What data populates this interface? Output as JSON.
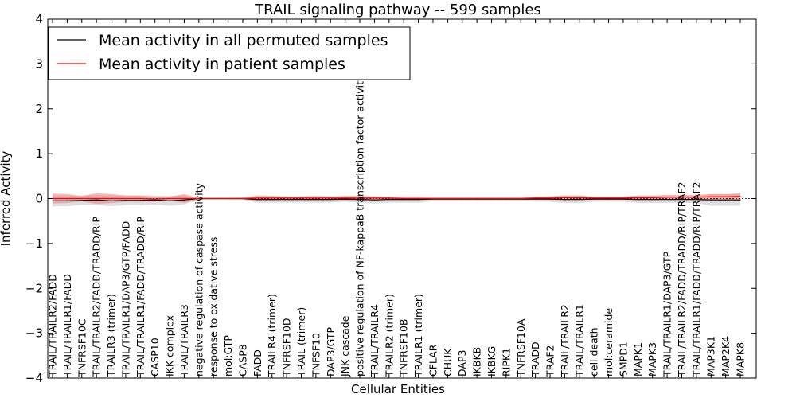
{
  "chart_data": {
    "type": "line",
    "title": "TRAIL signaling pathway -- 599 samples",
    "xlabel": "Cellular Entities",
    "ylabel": "Inferred Activity",
    "ylim": [
      -4,
      4
    ],
    "yticks": [
      -4,
      -3,
      -2,
      -1,
      0,
      1,
      2,
      3,
      4
    ],
    "ytick_labels": [
      "−4",
      "−3",
      "−2",
      "−1",
      "0",
      "1",
      "2",
      "3",
      "4"
    ],
    "legend_position": "top-left",
    "categories": [
      "TRAIL/TRAILR2/FADD",
      "TRAIL/TRAILR1/FADD",
      "TNFRSF10C",
      "TRAIL/TRAILR2/FADD/TRADD/RIP",
      "TRAILR3 (trimer)",
      "TRAIL/TRAILR1/DAP3/GTP/FADD",
      "TRAIL/TRAILR1/FADD/TRADD/RIP",
      "CASP10",
      "IKK complex",
      "TRAIL/TRAILR3",
      "negative regulation of caspase activity",
      "response to oxidative stress",
      "mol:GTP",
      "CASP8",
      "FADD",
      "TRAILR4 (trimer)",
      "TNFRSF10D",
      "TRAIL (trimer)",
      "TNFSF10",
      "DAP3/GTP",
      "JNK cascade",
      "positive regulation of NF-kappaB transcription factor activity",
      "TRAIL/TRAILR4",
      "TRAILR2 (trimer)",
      "TNFRSF10B",
      "TRAILR1 (trimer)",
      "CFLAR",
      "CHUK",
      "DAP3",
      "IKBKB",
      "IKBKG",
      "RIPK1",
      "TNFRSF10A",
      "TRADD",
      "TRAF2",
      "TRAIL/TRAILR2",
      "TRAIL/TRAILR1",
      "cell death",
      "mol:ceramide",
      "SMPD1",
      "MAPK1",
      "MAPK3",
      "TRAIL/TRAILR1/DAP3/GTP",
      "TRAIL/TRAILR2/FADD/TRADD/RIP/TRAF2",
      "TRAIL/TRAILR1/FADD/TRADD/RIP/TRAF2",
      "MAP3K1",
      "MAP2K4",
      "MAPK8"
    ],
    "series": [
      {
        "name": "Mean activity in all permuted samples",
        "color": "#000000",
        "band_color": "#c8c8c8",
        "values": [
          -0.05,
          -0.05,
          -0.04,
          -0.03,
          -0.05,
          -0.04,
          -0.04,
          -0.03,
          -0.05,
          -0.03,
          0.0,
          0.0,
          0.0,
          0.0,
          -0.02,
          -0.02,
          -0.02,
          -0.02,
          -0.02,
          -0.02,
          -0.01,
          -0.02,
          -0.03,
          -0.02,
          -0.02,
          -0.02,
          -0.01,
          -0.01,
          -0.01,
          -0.01,
          -0.01,
          -0.01,
          -0.01,
          -0.01,
          -0.01,
          -0.02,
          -0.02,
          -0.01,
          -0.01,
          -0.01,
          -0.02,
          -0.02,
          -0.02,
          -0.02,
          -0.02,
          -0.03,
          -0.03,
          -0.03
        ],
        "spread": [
          0.12,
          0.12,
          0.1,
          0.11,
          0.12,
          0.11,
          0.11,
          0.1,
          0.11,
          0.1,
          0.02,
          0.02,
          0.02,
          0.02,
          0.07,
          0.07,
          0.07,
          0.07,
          0.07,
          0.07,
          0.06,
          0.07,
          0.08,
          0.07,
          0.07,
          0.07,
          0.05,
          0.05,
          0.05,
          0.05,
          0.05,
          0.05,
          0.05,
          0.06,
          0.06,
          0.08,
          0.08,
          0.06,
          0.06,
          0.06,
          0.08,
          0.08,
          0.08,
          0.08,
          0.08,
          0.13,
          0.13,
          0.13
        ]
      },
      {
        "name": "Mean activity in patient samples",
        "color": "#ff0000",
        "band_color": "#f08080",
        "values": [
          0.0,
          0.0,
          0.0,
          0.0,
          0.0,
          0.0,
          0.0,
          -0.01,
          0.0,
          0.0,
          0.0,
          0.0,
          0.0,
          0.0,
          0.01,
          0.01,
          0.01,
          0.01,
          0.01,
          0.01,
          0.01,
          0.01,
          0.01,
          0.01,
          0.0,
          0.0,
          0.0,
          0.0,
          0.0,
          0.0,
          0.0,
          0.0,
          0.0,
          0.01,
          0.01,
          0.02,
          0.02,
          0.01,
          0.01,
          0.01,
          0.02,
          0.02,
          0.03,
          0.03,
          0.03,
          0.04,
          0.04,
          0.05
        ],
        "spread": [
          0.11,
          0.1,
          0.06,
          0.12,
          0.1,
          0.07,
          0.07,
          0.05,
          0.04,
          0.1,
          0.01,
          0.01,
          0.01,
          0.02,
          0.06,
          0.05,
          0.04,
          0.04,
          0.05,
          0.04,
          0.05,
          0.05,
          0.04,
          0.03,
          0.03,
          0.03,
          0.02,
          0.02,
          0.02,
          0.02,
          0.02,
          0.02,
          0.02,
          0.03,
          0.04,
          0.05,
          0.05,
          0.03,
          0.03,
          0.03,
          0.05,
          0.05,
          0.05,
          0.05,
          0.05,
          0.06,
          0.06,
          0.07
        ]
      }
    ]
  }
}
